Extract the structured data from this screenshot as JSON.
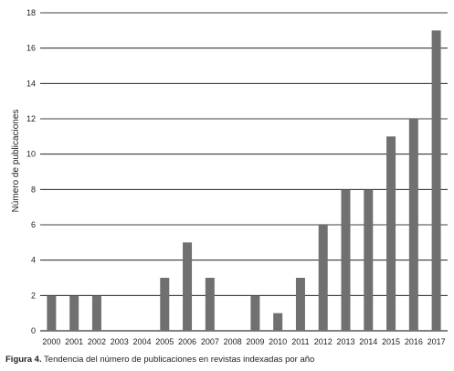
{
  "caption": {
    "label": "Figura 4.",
    "text": " Tendencia del número de publicaciones en revistas indexadas por año"
  },
  "chart_data": {
    "type": "bar",
    "title": "",
    "xlabel": "",
    "ylabel": "Número de publicaciones",
    "ylim": [
      0,
      18
    ],
    "yticks": [
      0,
      2,
      4,
      6,
      8,
      10,
      12,
      14,
      16,
      18
    ],
    "grid": "horizontal",
    "categories": [
      "2000",
      "2001",
      "2002",
      "2003",
      "2004",
      "2005",
      "2006",
      "2007",
      "2008",
      "2009",
      "2010",
      "2011",
      "2012",
      "2013",
      "2014",
      "2015",
      "2016",
      "2017"
    ],
    "values": [
      2,
      2,
      2,
      0,
      0,
      3,
      5,
      3,
      0,
      2,
      1,
      3,
      6,
      8,
      8,
      11,
      12,
      17
    ],
    "bar_color": "#707070",
    "grid_color": "#000000"
  }
}
